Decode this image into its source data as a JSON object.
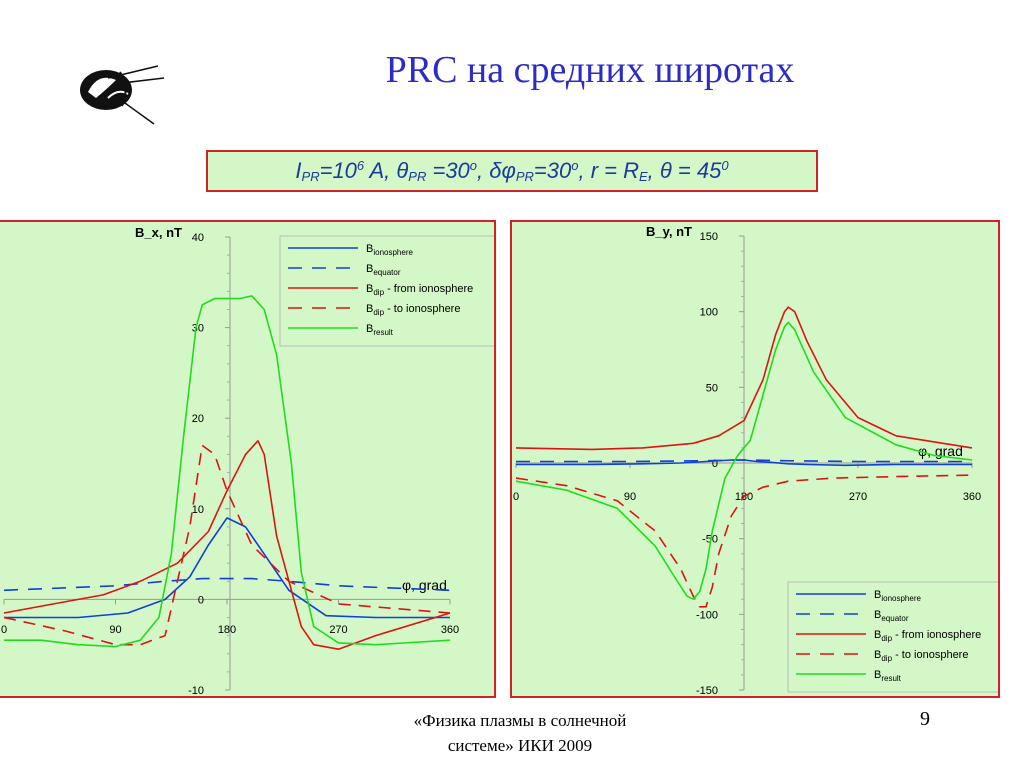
{
  "slide": {
    "title": "PRC на средних широтах",
    "params_html": "I<sub>PR</sub>=10<sup>6</sup> A, θ<sub>PR</sub> =30<sup>o</sup>, δφ<sub>PR</sub>=30<sup>o</sup>, r = R<sub>E</sub>, θ = 45<sup>0</sup>",
    "footer_line1": "«Физика плазмы в солнечной",
    "footer_line2": "системе» ИКИ 2009",
    "page_number": "9",
    "logo_icon": "iki-logo-icon"
  },
  "colors": {
    "panel_bg": "#d3f7c6",
    "panel_border": "#d0202a",
    "blue": "#1040d8",
    "red": "#dc1414",
    "green": "#20dc20",
    "title": "#2b2bc8"
  },
  "legend_entries": [
    {
      "main": "B",
      "sub": "ionosphere",
      "suffix": "",
      "color": "#1040d8",
      "dash": false
    },
    {
      "main": "B",
      "sub": "equator",
      "suffix": "",
      "color": "#1040d8",
      "dash": true
    },
    {
      "main": "B",
      "sub": "dip",
      "suffix": " - from ionosphere",
      "color": "#dc1414",
      "dash": false
    },
    {
      "main": "B",
      "sub": "dip",
      "suffix": " - to ionosphere",
      "color": "#dc1414",
      "dash": true
    },
    {
      "main": "B",
      "sub": "result",
      "suffix": "",
      "color": "#20dc20",
      "dash": false
    }
  ],
  "chart_data": [
    {
      "type": "line",
      "ylabel": "B_x, nT",
      "xlabel": "φ, grad",
      "xlim": [
        0,
        360
      ],
      "ylim": [
        -10,
        40
      ],
      "xticks": [
        0,
        90,
        180,
        270,
        360
      ],
      "yticks": [
        -10,
        0,
        10,
        20,
        30,
        40
      ],
      "legend_position": "top-right",
      "series": [
        {
          "key": "ionosphere",
          "x": [
            0,
            60,
            100,
            130,
            150,
            165,
            180,
            195,
            210,
            230,
            260,
            300,
            360
          ],
          "y": [
            -2,
            -2,
            -1.5,
            0,
            2.5,
            6,
            9,
            8,
            5,
            1,
            -1.8,
            -2,
            -2
          ]
        },
        {
          "key": "equator",
          "x": [
            0,
            90,
            130,
            160,
            180,
            200,
            230,
            270,
            360
          ],
          "y": [
            1,
            1.5,
            2,
            2.3,
            2.3,
            2.3,
            2,
            1.5,
            1
          ]
        },
        {
          "key": "dip_from",
          "x": [
            0,
            40,
            80,
            110,
            140,
            165,
            180,
            195,
            205,
            210,
            220,
            240,
            250,
            270,
            300,
            360
          ],
          "y": [
            -1.5,
            -0.5,
            0.5,
            2,
            4,
            7.5,
            12,
            16,
            17.5,
            16,
            7,
            -3,
            -5,
            -5.5,
            -4,
            -1.5
          ]
        },
        {
          "key": "dip_to",
          "x": [
            0,
            50,
            90,
            110,
            130,
            140,
            150,
            160,
            170,
            180,
            200,
            230,
            270,
            360
          ],
          "y": [
            -2,
            -3.5,
            -5,
            -5,
            -4,
            2,
            8,
            17,
            16,
            12,
            6,
            2,
            -0.5,
            -1.5
          ]
        },
        {
          "key": "result",
          "x": [
            0,
            30,
            60,
            90,
            110,
            125,
            135,
            145,
            155,
            160,
            170,
            190,
            200,
            210,
            220,
            232,
            240,
            250,
            270,
            300,
            360
          ],
          "y": [
            -4.5,
            -4.5,
            -5,
            -5.2,
            -4.5,
            -2,
            5,
            18,
            30,
            32.5,
            33.2,
            33.2,
            33.5,
            32,
            27,
            15,
            3,
            -3,
            -4.8,
            -5,
            -4.5
          ]
        }
      ]
    },
    {
      "type": "line",
      "ylabel": "B_y, nT",
      "xlabel": "φ, grad",
      "xlim": [
        0,
        360
      ],
      "ylim": [
        -150,
        150
      ],
      "xticks": [
        0,
        90,
        180,
        270,
        360
      ],
      "yticks": [
        -150,
        -100,
        -50,
        0,
        50,
        100,
        150
      ],
      "legend_position": "bottom-right",
      "series": [
        {
          "key": "ionosphere",
          "x": [
            0,
            60,
            100,
            130,
            150,
            170,
            180,
            190,
            200,
            215,
            230,
            260,
            300,
            360
          ],
          "y": [
            -1,
            -1,
            -0.5,
            0,
            1,
            2,
            2,
            1,
            0.5,
            -0.5,
            -1,
            -1.5,
            -1,
            -1
          ]
        },
        {
          "key": "equator",
          "x": [
            0,
            90,
            150,
            180,
            210,
            270,
            360
          ],
          "y": [
            1,
            1,
            1.5,
            2,
            1.5,
            1,
            1
          ]
        },
        {
          "key": "dip_from",
          "x": [
            0,
            60,
            100,
            140,
            160,
            180,
            195,
            205,
            212,
            215,
            220,
            230,
            245,
            270,
            300,
            360
          ],
          "y": [
            10,
            9,
            10,
            13,
            18,
            28,
            55,
            85,
            100,
            103,
            100,
            80,
            55,
            30,
            18,
            10
          ]
        },
        {
          "key": "dip_to",
          "x": [
            0,
            40,
            80,
            110,
            130,
            140,
            145,
            150,
            155,
            160,
            170,
            180,
            195,
            215,
            250,
            300,
            360
          ],
          "y": [
            -10,
            -15,
            -25,
            -45,
            -70,
            -88,
            -95,
            -95,
            -82,
            -60,
            -35,
            -22,
            -16,
            -12,
            -10,
            -9,
            -8
          ]
        },
        {
          "key": "result",
          "x": [
            0,
            40,
            80,
            110,
            125,
            135,
            140,
            145,
            150,
            155,
            165,
            175,
            185,
            195,
            205,
            212,
            215,
            220,
            235,
            260,
            300,
            330,
            360
          ],
          "y": [
            -12,
            -18,
            -30,
            -55,
            -75,
            -88,
            -90,
            -85,
            -70,
            -45,
            -10,
            5,
            15,
            45,
            75,
            90,
            93,
            88,
            60,
            30,
            12,
            5,
            2
          ]
        }
      ]
    }
  ]
}
